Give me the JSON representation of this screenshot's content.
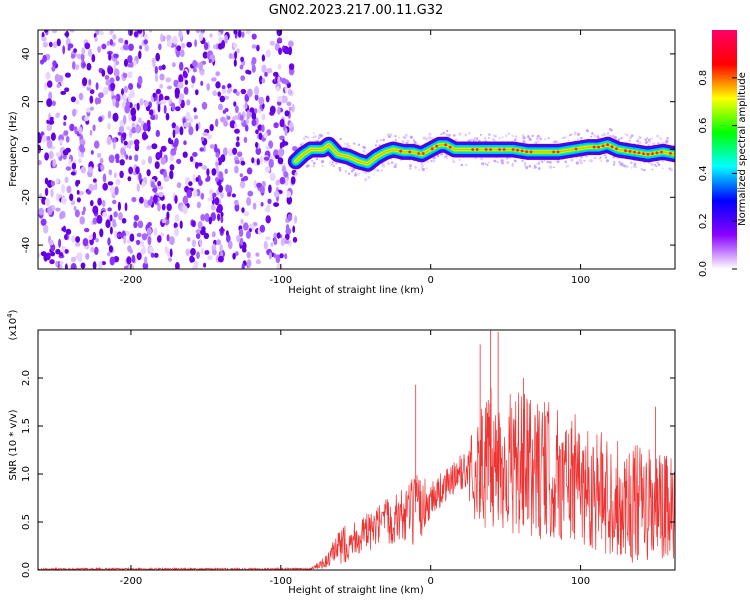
{
  "title": "GN02.2023.217.00.11.G32",
  "charts": [
    {
      "type": "heatmap",
      "xlabel": "Height of straight line (km)",
      "ylabel": "Frequency (Hz)",
      "xlim": [
        -262,
        163
      ],
      "ylim": [
        -50,
        50
      ],
      "xticks": [
        -200,
        -100,
        0,
        100
      ],
      "yticks": [
        -40,
        -20,
        0,
        20,
        40
      ],
      "noise_region_x": [
        -262,
        -90
      ],
      "signal_track": [
        {
          "x": -90,
          "y": -5
        },
        {
          "x": -85,
          "y": -2
        },
        {
          "x": -80,
          "y": 0
        },
        {
          "x": -72,
          "y": 0
        },
        {
          "x": -68,
          "y": 2
        },
        {
          "x": -62,
          "y": -2
        },
        {
          "x": -55,
          "y": -3
        },
        {
          "x": -48,
          "y": -5
        },
        {
          "x": -42,
          "y": -6
        },
        {
          "x": -36,
          "y": -3
        },
        {
          "x": -30,
          "y": -1
        },
        {
          "x": -25,
          "y": 0
        },
        {
          "x": -18,
          "y": -1
        },
        {
          "x": -12,
          "y": -1
        },
        {
          "x": -6,
          "y": -2
        },
        {
          "x": 0,
          "y": 0
        },
        {
          "x": 6,
          "y": 2
        },
        {
          "x": 10,
          "y": 2
        },
        {
          "x": 16,
          "y": 0
        },
        {
          "x": 24,
          "y": 0
        },
        {
          "x": 35,
          "y": 0
        },
        {
          "x": 45,
          "y": 0
        },
        {
          "x": 55,
          "y": 0
        },
        {
          "x": 65,
          "y": -1
        },
        {
          "x": 75,
          "y": -1
        },
        {
          "x": 85,
          "y": -1
        },
        {
          "x": 95,
          "y": 0
        },
        {
          "x": 105,
          "y": 1
        },
        {
          "x": 112,
          "y": 1
        },
        {
          "x": 118,
          "y": 2
        },
        {
          "x": 125,
          "y": 0
        },
        {
          "x": 135,
          "y": -1
        },
        {
          "x": 145,
          "y": -2
        },
        {
          "x": 155,
          "y": -1
        },
        {
          "x": 163,
          "y": -2
        }
      ]
    },
    {
      "type": "line",
      "xlabel": "Height of straight line (km)",
      "ylabel": "SNR (10 * v/v)",
      "scale_label_base": "(x10",
      "scale_label_exp": "4",
      "scale_label_close": ")",
      "xlim": [
        -262,
        163
      ],
      "ylim": [
        0,
        2.5
      ],
      "xticks": [
        -200,
        -100,
        0,
        100
      ],
      "yticks": [
        0.0,
        0.5,
        1.0,
        1.5,
        2.0
      ],
      "ytick_labels": [
        "0.0",
        "0.5",
        "1.0",
        "1.5",
        "2.0"
      ],
      "color": "#ee3333",
      "envelope": [
        {
          "x": -262,
          "lo": 0.0,
          "hi": 0.02
        },
        {
          "x": -80,
          "lo": 0.0,
          "hi": 0.02
        },
        {
          "x": -70,
          "lo": 0.02,
          "hi": 0.15
        },
        {
          "x": -60,
          "lo": 0.05,
          "hi": 0.45
        },
        {
          "x": -50,
          "lo": 0.15,
          "hi": 0.55
        },
        {
          "x": -40,
          "lo": 0.2,
          "hi": 0.6
        },
        {
          "x": -30,
          "lo": 0.25,
          "hi": 0.75
        },
        {
          "x": -20,
          "lo": 0.3,
          "hi": 0.85
        },
        {
          "x": -10,
          "lo": 0.2,
          "hi": 1.0
        },
        {
          "x": 0,
          "lo": 0.55,
          "hi": 0.95
        },
        {
          "x": 10,
          "lo": 0.7,
          "hi": 1.05
        },
        {
          "x": 20,
          "lo": 0.85,
          "hi": 1.2
        },
        {
          "x": 30,
          "lo": 0.5,
          "hi": 1.6
        },
        {
          "x": 40,
          "lo": 0.4,
          "hi": 1.9
        },
        {
          "x": 60,
          "lo": 0.35,
          "hi": 1.85
        },
        {
          "x": 80,
          "lo": 0.3,
          "hi": 1.75
        },
        {
          "x": 100,
          "lo": 0.25,
          "hi": 1.6
        },
        {
          "x": 120,
          "lo": 0.15,
          "hi": 1.4
        },
        {
          "x": 140,
          "lo": 0.05,
          "hi": 1.3
        },
        {
          "x": 163,
          "lo": 0.05,
          "hi": 1.2
        }
      ],
      "spikes": [
        {
          "x": -10,
          "y": 1.93
        },
        {
          "x": 33,
          "y": 2.35
        },
        {
          "x": 40,
          "y": 2.5
        },
        {
          "x": 45,
          "y": 2.48
        },
        {
          "x": 62,
          "y": 2.0
        },
        {
          "x": 150,
          "y": 1.7
        }
      ]
    }
  ],
  "colorbar": {
    "label": "Normalized spectral amplitude",
    "ticks": [
      0.0,
      0.2,
      0.4,
      0.6,
      0.8
    ],
    "tick_labels": [
      "0.0",
      "0.2",
      "0.4",
      "0.6",
      "0.8"
    ],
    "colors": [
      "#ffffff",
      "#8a00ff",
      "#0000ff",
      "#00ffff",
      "#00ff00",
      "#ffff00",
      "#ff0000",
      "#ff0066"
    ]
  }
}
